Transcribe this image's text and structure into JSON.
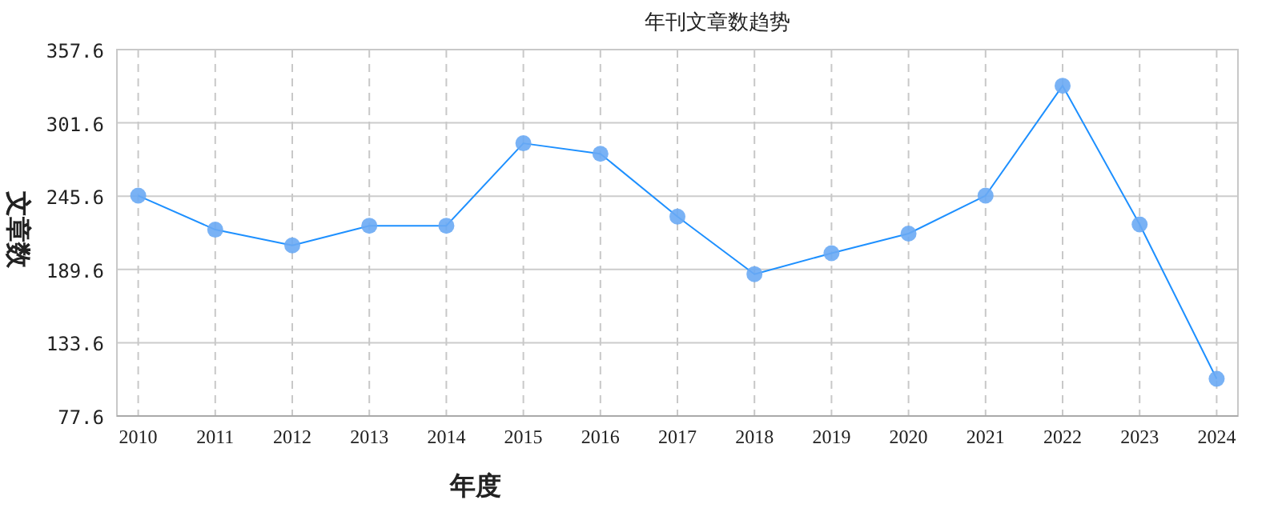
{
  "chart_data": {
    "type": "line",
    "title": "年刊文章数趋势",
    "xlabel": "年度",
    "ylabel": "文章数",
    "categories": [
      "2010",
      "2011",
      "2012",
      "2013",
      "2014",
      "2015",
      "2016",
      "2017",
      "2018",
      "2019",
      "2020",
      "2021",
      "2022",
      "2023",
      "2024"
    ],
    "series": [
      {
        "color": "#1e90ff",
        "values": [
          246,
          220,
          208,
          223,
          223,
          286,
          278,
          230,
          186,
          202,
          217,
          246,
          330,
          224,
          106
        ]
      }
    ],
    "ylim": [
      77.6,
      357.6
    ],
    "yticks": [
      {
        "value": 77.6,
        "label": "77.6"
      },
      {
        "value": 133.6,
        "label": "133.6"
      },
      {
        "value": 189.6,
        "label": "189.6"
      },
      {
        "value": 245.6,
        "label": "245.6"
      },
      {
        "value": 301.6,
        "label": "301.6"
      },
      {
        "value": 357.6,
        "label": "357.6"
      }
    ],
    "grid": true,
    "marker": "circle",
    "line_style": "solid"
  }
}
